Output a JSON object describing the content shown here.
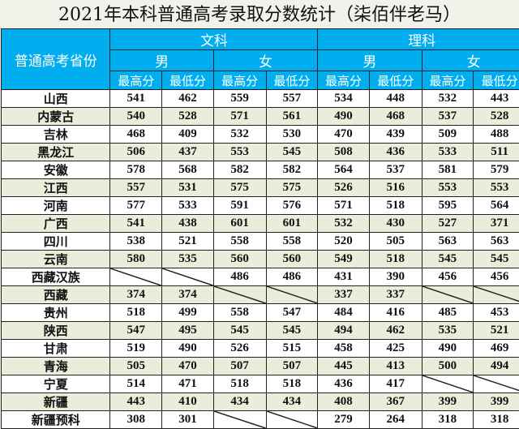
{
  "title": "2021年本科普通高考录取分数统计（柒佰伴老马）",
  "header": {
    "province_label": "普通高考省份",
    "groups": [
      {
        "label": "文科",
        "genders": [
          {
            "label": "男"
          },
          {
            "label": "女"
          }
        ]
      },
      {
        "label": "理科",
        "genders": [
          {
            "label": "男"
          },
          {
            "label": "女"
          }
        ]
      }
    ],
    "max_label": "最高分",
    "min_label": "最低分"
  },
  "colors": {
    "header_bg": "#00adef",
    "header_text": "#ffffff",
    "row_alt_bg": "#e9eedb",
    "row_bg": "#ffffff"
  },
  "columns": [
    "文科男最高分",
    "文科男最低分",
    "文科女最高分",
    "文科女最低分",
    "理科男最高分",
    "理科男最低分",
    "理科女最高分",
    "理科女最低分"
  ],
  "rows": [
    {
      "province": "山西",
      "values": [
        "541",
        "462",
        "559",
        "557",
        "534",
        "448",
        "532",
        "443"
      ]
    },
    {
      "province": "内蒙古",
      "values": [
        "540",
        "528",
        "571",
        "561",
        "490",
        "468",
        "537",
        "528"
      ]
    },
    {
      "province": "吉林",
      "values": [
        "468",
        "409",
        "532",
        "530",
        "470",
        "439",
        "509",
        "488"
      ]
    },
    {
      "province": "黑龙江",
      "values": [
        "506",
        "437",
        "553",
        "545",
        "508",
        "436",
        "533",
        "511"
      ]
    },
    {
      "province": "安徽",
      "values": [
        "578",
        "568",
        "582",
        "582",
        "564",
        "537",
        "581",
        "579"
      ]
    },
    {
      "province": "江西",
      "values": [
        "557",
        "531",
        "575",
        "575",
        "526",
        "516",
        "553",
        "553"
      ]
    },
    {
      "province": "河南",
      "values": [
        "577",
        "533",
        "591",
        "576",
        "571",
        "518",
        "595",
        "564"
      ]
    },
    {
      "province": "广西",
      "values": [
        "541",
        "438",
        "601",
        "601",
        "532",
        "430",
        "527",
        "371"
      ]
    },
    {
      "province": "四川",
      "values": [
        "538",
        "521",
        "558",
        "558",
        "520",
        "505",
        "563",
        "563"
      ]
    },
    {
      "province": "云南",
      "values": [
        "580",
        "535",
        "560",
        "560",
        "549",
        "518",
        "545",
        "545"
      ]
    },
    {
      "province": "西藏汉族",
      "values": [
        "",
        "",
        "486",
        "486",
        "431",
        "390",
        "456",
        "456"
      ]
    },
    {
      "province": "西藏",
      "values": [
        "374",
        "374",
        "",
        "",
        "337",
        "337",
        "",
        ""
      ]
    },
    {
      "province": "贵州",
      "values": [
        "518",
        "499",
        "558",
        "547",
        "484",
        "416",
        "485",
        "453"
      ]
    },
    {
      "province": "陕西",
      "values": [
        "547",
        "495",
        "545",
        "545",
        "494",
        "462",
        "535",
        "521"
      ]
    },
    {
      "province": "甘肃",
      "values": [
        "519",
        "490",
        "526",
        "515",
        "458",
        "425",
        "490",
        "469"
      ]
    },
    {
      "province": "青海",
      "values": [
        "505",
        "470",
        "507",
        "507",
        "445",
        "413",
        "500",
        "494"
      ]
    },
    {
      "province": "宁夏",
      "values": [
        "514",
        "471",
        "518",
        "518",
        "436",
        "417",
        "",
        ""
      ]
    },
    {
      "province": "新疆",
      "values": [
        "443",
        "410",
        "434",
        "434",
        "408",
        "367",
        "399",
        "399"
      ]
    },
    {
      "province": "新疆预科",
      "values": [
        "308",
        "301",
        "",
        "",
        "279",
        "264",
        "318",
        "318"
      ]
    }
  ]
}
